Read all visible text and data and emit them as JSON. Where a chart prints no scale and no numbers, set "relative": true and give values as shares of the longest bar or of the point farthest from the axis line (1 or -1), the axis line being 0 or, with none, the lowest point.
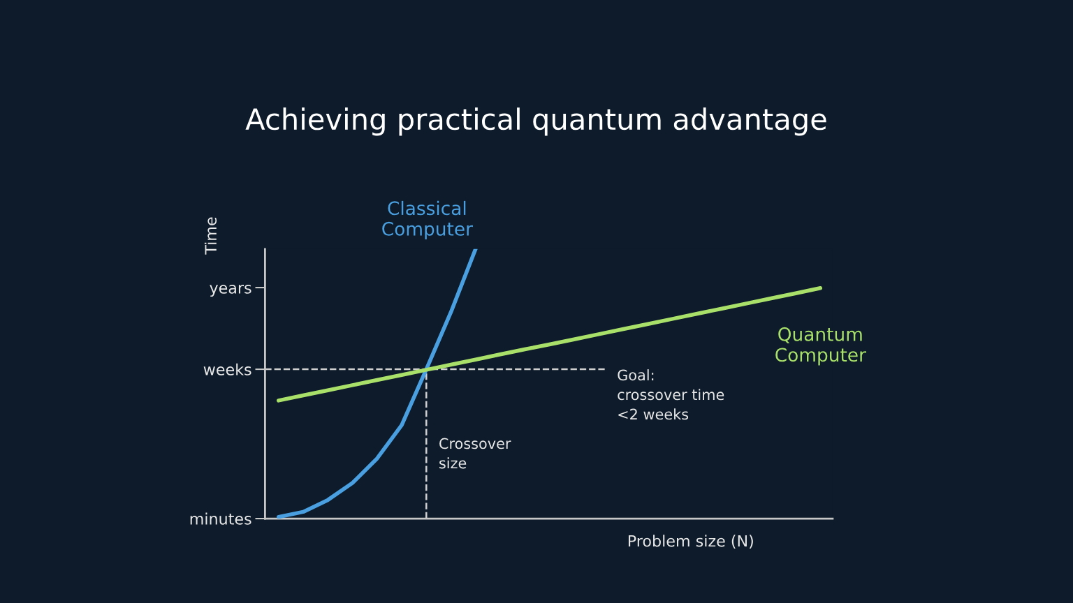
{
  "chart_data": {
    "type": "line",
    "title": "Achieving practical quantum advantage",
    "xlabel": "Problem size (N)",
    "ylabel": "Time",
    "tick_labels": "y",
    "grid": false,
    "legend": false,
    "marker": "none",
    "line_style": "solid",
    "relative": true,
    "annotations": [
      "minutes",
      "Goal:\ncrossover time\n<2 weeks",
      "Crossover\nsize"
    ],
    "categories": [
      null,
      null,
      null,
      null,
      null,
      null,
      null,
      null,
      null,
      null,
      null,
      null,
      null,
      null,
      null,
      null,
      null,
      null,
      null,
      null,
      null,
      null,
      null
    ],
    "series": [
      {
        "name": "Classical\nComputer",
        "color": "#4a9fe0",
        "values": [
          0.006,
          0.025,
          0.069,
          0.132,
          0.223,
          0.347,
          0.554,
          0.766,
          1.0,
          null,
          null,
          null,
          null,
          null,
          null,
          null,
          null,
          null,
          null,
          null,
          null,
          null,
          null
        ]
      },
      {
        "name": "Quantum\nComputer",
        "color": "#a8e06a",
        "values": [
          0.438,
          0.457,
          0.476,
          0.495,
          0.514,
          0.533,
          0.552,
          0.571,
          0.59,
          0.609,
          0.628,
          0.646,
          0.665,
          0.684,
          0.703,
          0.722,
          0.741,
          0.76,
          0.779,
          0.798,
          0.817,
          0.836,
          0.855
        ]
      }
    ],
    "ref_lines": [
      {
        "axis": "y",
        "value": 0.554,
        "label": "weeks",
        "color": "#d0d0d0",
        "line_style": "dashed"
      },
      {
        "axis": "y",
        "value": 0.857,
        "label": "years",
        "color": "#c8c8c8"
      }
    ]
  }
}
